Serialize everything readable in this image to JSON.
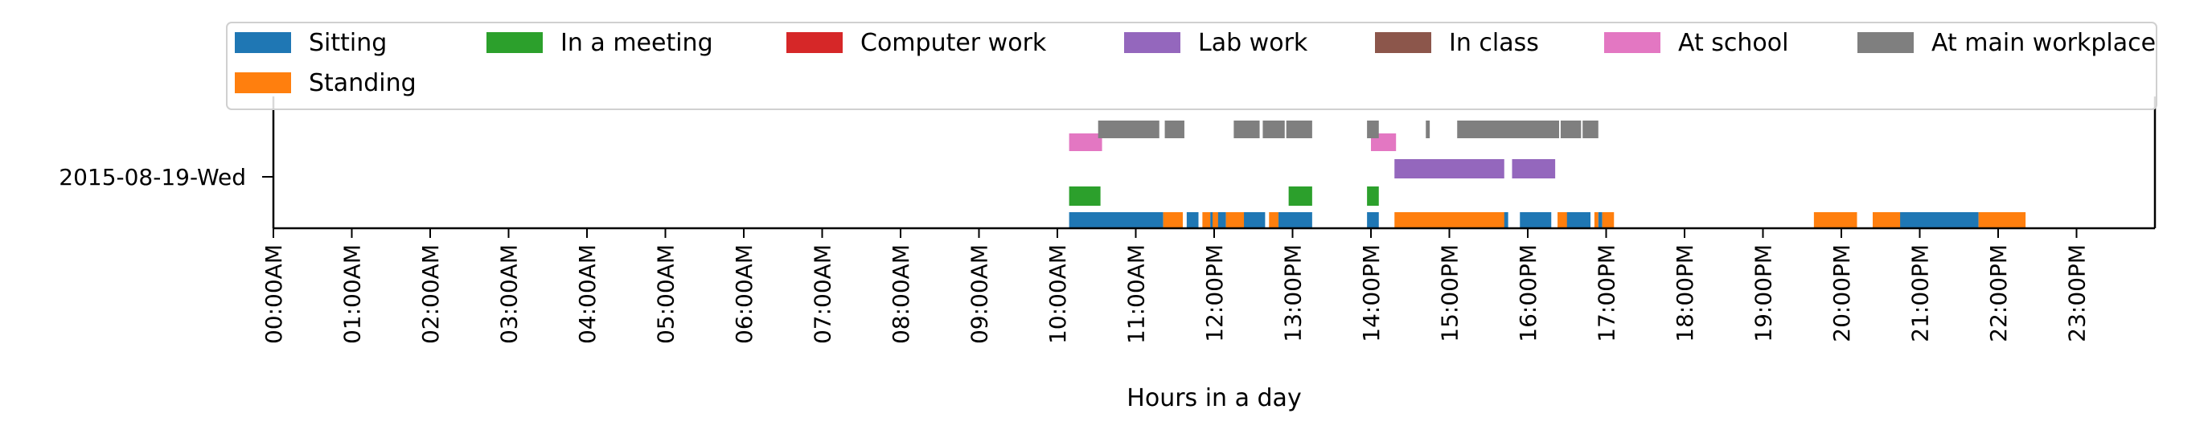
{
  "chart_data": {
    "type": "timeline",
    "title": "",
    "xlabel": "Hours in a day",
    "ylabel": "",
    "xlim": [
      0,
      24
    ],
    "grid": false,
    "legend_position": "top",
    "y_category": "2015-08-19-Wed",
    "x_tick_labels": [
      "00:00AM",
      "01:00AM",
      "02:00AM",
      "03:00AM",
      "04:00AM",
      "05:00AM",
      "06:00AM",
      "07:00AM",
      "08:00AM",
      "09:00AM",
      "10:00AM",
      "11:00AM",
      "12:00PM",
      "13:00PM",
      "14:00PM",
      "15:00PM",
      "16:00PM",
      "17:00PM",
      "18:00PM",
      "19:00PM",
      "20:00PM",
      "21:00PM",
      "22:00PM",
      "23:00PM"
    ],
    "series": [
      {
        "name": "Sitting",
        "color": "#1f77b4",
        "level": 0,
        "intervals": [
          [
            10.15,
            11.35
          ],
          [
            11.65,
            11.8
          ],
          [
            11.95,
            12.15
          ],
          [
            12.35,
            12.65
          ],
          [
            12.82,
            13.25
          ],
          [
            13.95,
            14.1
          ],
          [
            15.65,
            15.75
          ],
          [
            15.9,
            16.3
          ],
          [
            16.45,
            16.8
          ],
          [
            16.9,
            16.95
          ],
          [
            20.7,
            21.75
          ]
        ]
      },
      {
        "name": "Standing",
        "color": "#ff7f0e",
        "level": 0,
        "intervals": [
          [
            11.35,
            11.6
          ],
          [
            11.85,
            11.95
          ],
          [
            11.98,
            12.05
          ],
          [
            12.15,
            12.38
          ],
          [
            12.7,
            12.82
          ],
          [
            14.3,
            15.7
          ],
          [
            16.38,
            16.5
          ],
          [
            16.85,
            16.9
          ],
          [
            16.95,
            17.1
          ],
          [
            19.65,
            20.2
          ],
          [
            20.4,
            20.75
          ],
          [
            21.75,
            22.35
          ]
        ]
      },
      {
        "name": "In a meeting",
        "color": "#2ca02c",
        "level": 1,
        "intervals": [
          [
            10.15,
            10.55
          ],
          [
            12.95,
            13.25
          ],
          [
            13.95,
            14.1
          ]
        ]
      },
      {
        "name": "Computer work",
        "color": "#d62728",
        "level": 1,
        "intervals": []
      },
      {
        "name": "Lab work",
        "color": "#9467bd",
        "level": 2,
        "intervals": [
          [
            14.3,
            15.7
          ],
          [
            15.8,
            16.35
          ]
        ]
      },
      {
        "name": "In class",
        "color": "#8c564b",
        "level": 2,
        "intervals": []
      },
      {
        "name": "At school",
        "color": "#e377c2",
        "level": 3,
        "intervals": [
          [
            10.15,
            10.57
          ],
          [
            14.0,
            14.32
          ]
        ]
      },
      {
        "name": "At main workplace",
        "color": "#7f7f7f",
        "level": 4,
        "intervals": [
          [
            10.52,
            11.3
          ],
          [
            11.37,
            11.62
          ],
          [
            12.25,
            12.58
          ],
          [
            12.62,
            12.9
          ],
          [
            12.92,
            13.25
          ],
          [
            13.95,
            14.1
          ],
          [
            14.7,
            14.75
          ],
          [
            15.1,
            16.4
          ],
          [
            16.42,
            16.68
          ],
          [
            16.7,
            16.9
          ]
        ]
      }
    ],
    "legend_rows": [
      [
        "Sitting",
        "In a meeting",
        "Computer work",
        "Lab work",
        "In class",
        "At school",
        "At main workplace"
      ],
      [
        "Standing"
      ]
    ]
  }
}
